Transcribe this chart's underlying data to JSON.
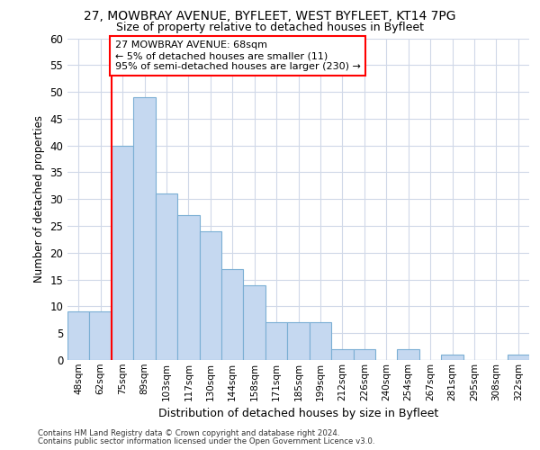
{
  "title_line1": "27, MOWBRAY AVENUE, BYFLEET, WEST BYFLEET, KT14 7PG",
  "title_line2": "Size of property relative to detached houses in Byfleet",
  "xlabel": "Distribution of detached houses by size in Byfleet",
  "ylabel": "Number of detached properties",
  "categories": [
    "48sqm",
    "62sqm",
    "75sqm",
    "89sqm",
    "103sqm",
    "117sqm",
    "130sqm",
    "144sqm",
    "158sqm",
    "171sqm",
    "185sqm",
    "199sqm",
    "212sqm",
    "226sqm",
    "240sqm",
    "254sqm",
    "267sqm",
    "281sqm",
    "295sqm",
    "308sqm",
    "322sqm"
  ],
  "values": [
    9,
    9,
    40,
    49,
    31,
    27,
    24,
    17,
    14,
    7,
    7,
    7,
    2,
    2,
    0,
    2,
    0,
    1,
    0,
    0,
    1
  ],
  "bar_color": "#c5d8f0",
  "bar_edge_color": "#7bafd4",
  "property_line_x": 1.5,
  "annotation_text": "27 MOWBRAY AVENUE: 68sqm\n← 5% of detached houses are smaller (11)\n95% of semi-detached houses are larger (230) →",
  "annotation_box_color": "white",
  "annotation_box_edge_color": "red",
  "vline_color": "red",
  "ylim": [
    0,
    60
  ],
  "yticks": [
    0,
    5,
    10,
    15,
    20,
    25,
    30,
    35,
    40,
    45,
    50,
    55,
    60
  ],
  "footer_line1": "Contains HM Land Registry data © Crown copyright and database right 2024.",
  "footer_line2": "Contains public sector information licensed under the Open Government Licence v3.0.",
  "grid_color": "#d0d8e8",
  "plot_bg_color": "white"
}
